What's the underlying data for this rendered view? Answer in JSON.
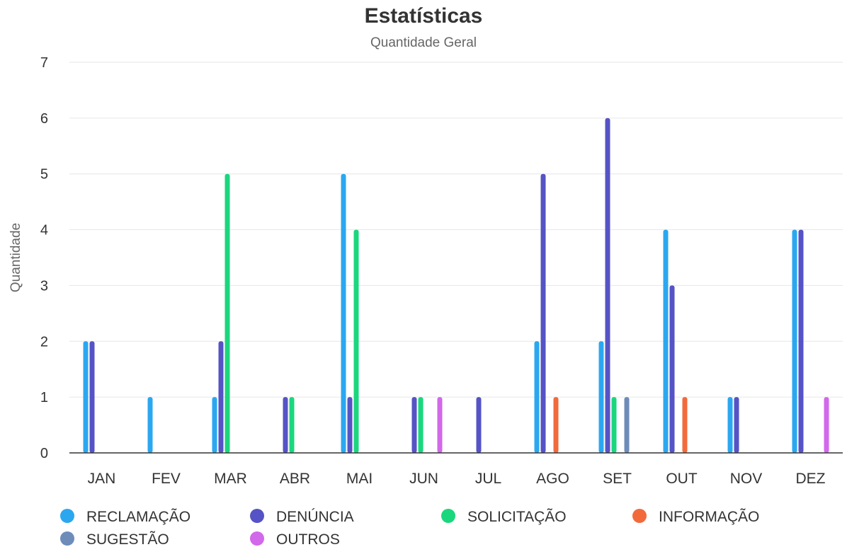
{
  "chart_data": {
    "type": "bar",
    "title": "Estatísticas",
    "subtitle": "Quantidade Geral",
    "ylabel": "Quantidade",
    "xlabel": "",
    "ylim": [
      0,
      7
    ],
    "yticks": [
      0,
      1,
      2,
      3,
      4,
      5,
      6,
      7
    ],
    "grid": true,
    "legend_position": "bottom",
    "categories": [
      "JAN",
      "FEV",
      "MAR",
      "ABR",
      "MAI",
      "JUN",
      "JUL",
      "AGO",
      "SET",
      "OUT",
      "NOV",
      "DEZ"
    ],
    "series": [
      {
        "name": "RECLAMAÇÃO",
        "color": "#2ba7f0",
        "values": [
          2,
          1,
          1,
          0,
          5,
          0,
          0,
          2,
          2,
          4,
          1,
          4
        ]
      },
      {
        "name": "DENÚNCIA",
        "color": "#5553c5",
        "values": [
          2,
          0,
          2,
          1,
          1,
          1,
          1,
          5,
          6,
          3,
          1,
          4
        ]
      },
      {
        "name": "SOLICITAÇÃO",
        "color": "#1ad77d",
        "values": [
          0,
          0,
          5,
          1,
          4,
          1,
          0,
          0,
          1,
          0,
          0,
          0
        ]
      },
      {
        "name": "INFORMAÇÃO",
        "color": "#f26a3c",
        "values": [
          0,
          0,
          0,
          0,
          0,
          0,
          0,
          1,
          0,
          1,
          0,
          0
        ]
      },
      {
        "name": "SUGESTÃO",
        "color": "#6e8cba",
        "values": [
          0,
          0,
          0,
          0,
          0,
          0,
          0,
          0,
          1,
          0,
          0,
          0
        ]
      },
      {
        "name": "OUTROS",
        "color": "#d268ea",
        "values": [
          0,
          0,
          0,
          0,
          0,
          1,
          0,
          0,
          0,
          0,
          0,
          1
        ]
      }
    ]
  }
}
